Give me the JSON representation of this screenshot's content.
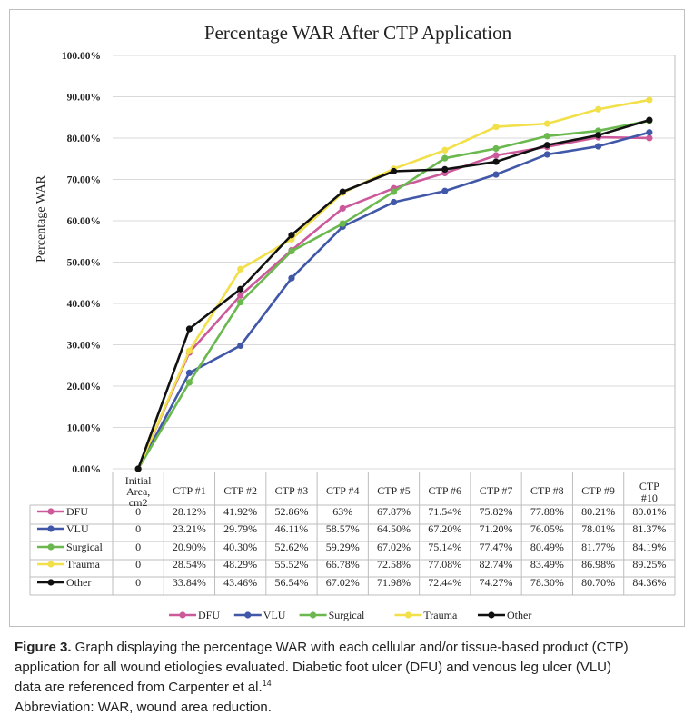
{
  "chart_data": {
    "type": "line",
    "title": "Percentage WAR After CTP Application",
    "ylabel": "Percentage WAR",
    "xlabel": "",
    "ylim": [
      0,
      100
    ],
    "yticks": [
      "0.00%",
      "10.00%",
      "20.00%",
      "30.00%",
      "40.00%",
      "50.00%",
      "60.00%",
      "70.00%",
      "80.00%",
      "90.00%",
      "100.00%"
    ],
    "categories": [
      "Initial Area, cm2",
      "CTP #1",
      "CTP #2",
      "CTP #3",
      "CTP #4",
      "CTP #5",
      "CTP #6",
      "CTP #7",
      "CTP #8",
      "CTP #9",
      "CTP #10"
    ],
    "series": [
      {
        "name": "DFU",
        "color": "#cc5a9b",
        "values": [
          0,
          28.12,
          41.92,
          52.86,
          63,
          67.87,
          71.54,
          75.82,
          77.88,
          80.21,
          80.01
        ],
        "labels": [
          "0",
          "28.12%",
          "41.92%",
          "52.86%",
          "63%",
          "67.87%",
          "71.54%",
          "75.82%",
          "77.88%",
          "80.21%",
          "80.01%"
        ]
      },
      {
        "name": "VLU",
        "color": "#4157a8",
        "values": [
          0,
          23.21,
          29.79,
          46.11,
          58.57,
          64.5,
          67.2,
          71.2,
          76.05,
          78.01,
          81.37
        ],
        "labels": [
          "0",
          "23.21%",
          "29.79%",
          "46.11%",
          "58.57%",
          "64.50%",
          "67.20%",
          "71.20%",
          "76.05%",
          "78.01%",
          "81.37%"
        ]
      },
      {
        "name": "Surgical",
        "color": "#6ab84e",
        "values": [
          0,
          20.9,
          40.3,
          52.62,
          59.29,
          67.02,
          75.14,
          77.47,
          80.49,
          81.77,
          84.19
        ],
        "labels": [
          "0",
          "20.90%",
          "40.30%",
          "52.62%",
          "59.29%",
          "67.02%",
          "75.14%",
          "77.47%",
          "80.49%",
          "81.77%",
          "84.19%"
        ]
      },
      {
        "name": "Trauma",
        "color": "#f2e04a",
        "values": [
          0,
          28.54,
          48.29,
          55.52,
          66.78,
          72.58,
          77.08,
          82.74,
          83.49,
          86.98,
          89.25
        ],
        "labels": [
          "0",
          "28.54%",
          "48.29%",
          "55.52%",
          "66.78%",
          "72.58%",
          "77.08%",
          "82.74%",
          "83.49%",
          "86.98%",
          "89.25%"
        ]
      },
      {
        "name": "Other",
        "color": "#111111",
        "values": [
          0,
          33.84,
          43.46,
          56.54,
          67.02,
          71.98,
          72.44,
          74.27,
          78.3,
          80.7,
          84.36
        ],
        "labels": [
          "0",
          "33.84%",
          "43.46%",
          "56.54%",
          "67.02%",
          "71.98%",
          "72.44%",
          "74.27%",
          "78.30%",
          "80.70%",
          "84.36%"
        ]
      }
    ],
    "grid": true,
    "legend": "bottom",
    "data_table": true
  },
  "caption": {
    "label": "Figure 3.",
    "line1": " Graph displaying the percentage WAR with each cellular and/or tissue-based product (CTP)",
    "line2": "application for all wound etiologies evaluated. Diabetic foot ulcer (DFU) and venous leg ulcer (VLU)",
    "line3": "data are referenced from Carpenter et al.",
    "ref": "14",
    "line4": "Abbreviation: WAR, wound area reduction."
  }
}
